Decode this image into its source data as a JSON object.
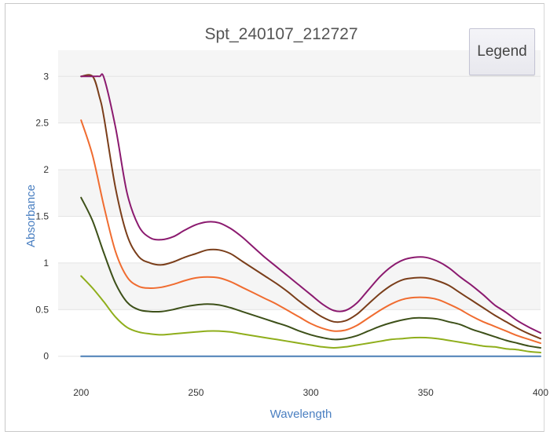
{
  "chart_data": {
    "type": "line",
    "title": "Spt_240107_212727",
    "xlabel": "Wavelength",
    "ylabel": "Absorbance",
    "xlim": [
      190,
      400
    ],
    "ylim": [
      -0.28,
      3.28
    ],
    "xticks": [
      200,
      250,
      300,
      350,
      400
    ],
    "yticks": [
      0,
      0.5,
      1,
      1.5,
      2,
      2.5,
      3
    ],
    "xtick_labels": [
      "200",
      "250",
      "300",
      "350",
      "400"
    ],
    "ytick_labels": [
      "0",
      "0.5",
      "1",
      "1.5",
      "2",
      "2.5",
      "3"
    ],
    "grid": "horizontal",
    "banded_background": true,
    "legend_button_label": "Legend",
    "series": [
      {
        "color": "#4a7fb5",
        "x": [
          200,
          250,
          300,
          350,
          400
        ],
        "y": [
          0,
          0,
          0,
          0,
          0
        ]
      },
      {
        "color": "#8fae1b",
        "x": [
          200,
          205,
          210,
          215,
          220,
          225,
          230,
          235,
          240,
          245,
          250,
          255,
          260,
          265,
          270,
          275,
          280,
          285,
          290,
          295,
          300,
          305,
          310,
          315,
          320,
          325,
          330,
          335,
          340,
          345,
          350,
          355,
          360,
          365,
          370,
          375,
          380,
          385,
          390,
          395,
          400
        ],
        "y": [
          0.86,
          0.73,
          0.58,
          0.42,
          0.31,
          0.26,
          0.24,
          0.23,
          0.24,
          0.25,
          0.26,
          0.27,
          0.27,
          0.26,
          0.24,
          0.22,
          0.2,
          0.18,
          0.16,
          0.14,
          0.12,
          0.1,
          0.09,
          0.1,
          0.12,
          0.14,
          0.16,
          0.18,
          0.19,
          0.2,
          0.2,
          0.19,
          0.17,
          0.15,
          0.13,
          0.11,
          0.1,
          0.08,
          0.07,
          0.05,
          0.04
        ]
      },
      {
        "color": "#3d5019",
        "x": [
          200,
          205,
          210,
          215,
          220,
          225,
          230,
          235,
          240,
          245,
          250,
          255,
          260,
          265,
          270,
          275,
          280,
          285,
          290,
          295,
          300,
          305,
          310,
          315,
          320,
          325,
          330,
          335,
          340,
          345,
          350,
          355,
          360,
          365,
          370,
          375,
          380,
          385,
          390,
          395,
          400
        ],
        "y": [
          1.7,
          1.45,
          1.1,
          0.78,
          0.58,
          0.5,
          0.48,
          0.48,
          0.5,
          0.53,
          0.55,
          0.56,
          0.55,
          0.52,
          0.48,
          0.44,
          0.4,
          0.36,
          0.32,
          0.27,
          0.23,
          0.2,
          0.18,
          0.19,
          0.22,
          0.27,
          0.32,
          0.36,
          0.39,
          0.41,
          0.41,
          0.4,
          0.37,
          0.34,
          0.29,
          0.25,
          0.21,
          0.17,
          0.14,
          0.11,
          0.09
        ]
      },
      {
        "color": "#f06c30",
        "x": [
          200,
          205,
          210,
          215,
          220,
          225,
          230,
          235,
          240,
          245,
          250,
          255,
          260,
          265,
          270,
          275,
          280,
          285,
          290,
          295,
          300,
          305,
          310,
          315,
          320,
          325,
          330,
          335,
          340,
          345,
          350,
          355,
          360,
          365,
          370,
          375,
          380,
          385,
          390,
          395,
          400
        ],
        "y": [
          2.53,
          2.15,
          1.6,
          1.12,
          0.85,
          0.75,
          0.73,
          0.74,
          0.77,
          0.81,
          0.84,
          0.85,
          0.84,
          0.8,
          0.74,
          0.68,
          0.62,
          0.56,
          0.49,
          0.42,
          0.35,
          0.3,
          0.27,
          0.28,
          0.33,
          0.41,
          0.49,
          0.56,
          0.61,
          0.63,
          0.63,
          0.61,
          0.56,
          0.5,
          0.43,
          0.37,
          0.32,
          0.27,
          0.22,
          0.18,
          0.14
        ]
      },
      {
        "color": "#7a3e1a",
        "x": [
          200,
          205,
          208,
          210,
          215,
          220,
          225,
          230,
          235,
          240,
          245,
          250,
          255,
          260,
          265,
          270,
          275,
          280,
          285,
          290,
          295,
          300,
          305,
          310,
          315,
          320,
          325,
          330,
          335,
          340,
          345,
          350,
          355,
          360,
          365,
          370,
          375,
          380,
          385,
          390,
          395,
          400
        ],
        "y": [
          3.0,
          3.0,
          2.78,
          2.55,
          1.8,
          1.3,
          1.07,
          1.0,
          0.98,
          1.01,
          1.06,
          1.1,
          1.14,
          1.14,
          1.1,
          1.02,
          0.94,
          0.86,
          0.78,
          0.69,
          0.59,
          0.5,
          0.42,
          0.37,
          0.38,
          0.45,
          0.56,
          0.67,
          0.76,
          0.82,
          0.84,
          0.84,
          0.81,
          0.76,
          0.68,
          0.6,
          0.52,
          0.44,
          0.37,
          0.3,
          0.24,
          0.19
        ]
      },
      {
        "color": "#8b1a6f",
        "x": [
          200,
          205,
          208,
          210,
          215,
          220,
          225,
          230,
          235,
          240,
          245,
          250,
          255,
          260,
          265,
          270,
          275,
          280,
          285,
          290,
          295,
          300,
          305,
          310,
          315,
          320,
          325,
          330,
          335,
          340,
          345,
          350,
          355,
          360,
          365,
          370,
          375,
          380,
          385,
          390,
          395,
          400
        ],
        "y": [
          3.0,
          3.0,
          3.0,
          2.98,
          2.45,
          1.75,
          1.4,
          1.27,
          1.25,
          1.28,
          1.35,
          1.41,
          1.44,
          1.43,
          1.37,
          1.28,
          1.17,
          1.06,
          0.96,
          0.86,
          0.76,
          0.66,
          0.56,
          0.49,
          0.49,
          0.57,
          0.71,
          0.85,
          0.96,
          1.03,
          1.06,
          1.06,
          1.02,
          0.95,
          0.85,
          0.76,
          0.66,
          0.55,
          0.47,
          0.38,
          0.31,
          0.25
        ]
      }
    ]
  }
}
